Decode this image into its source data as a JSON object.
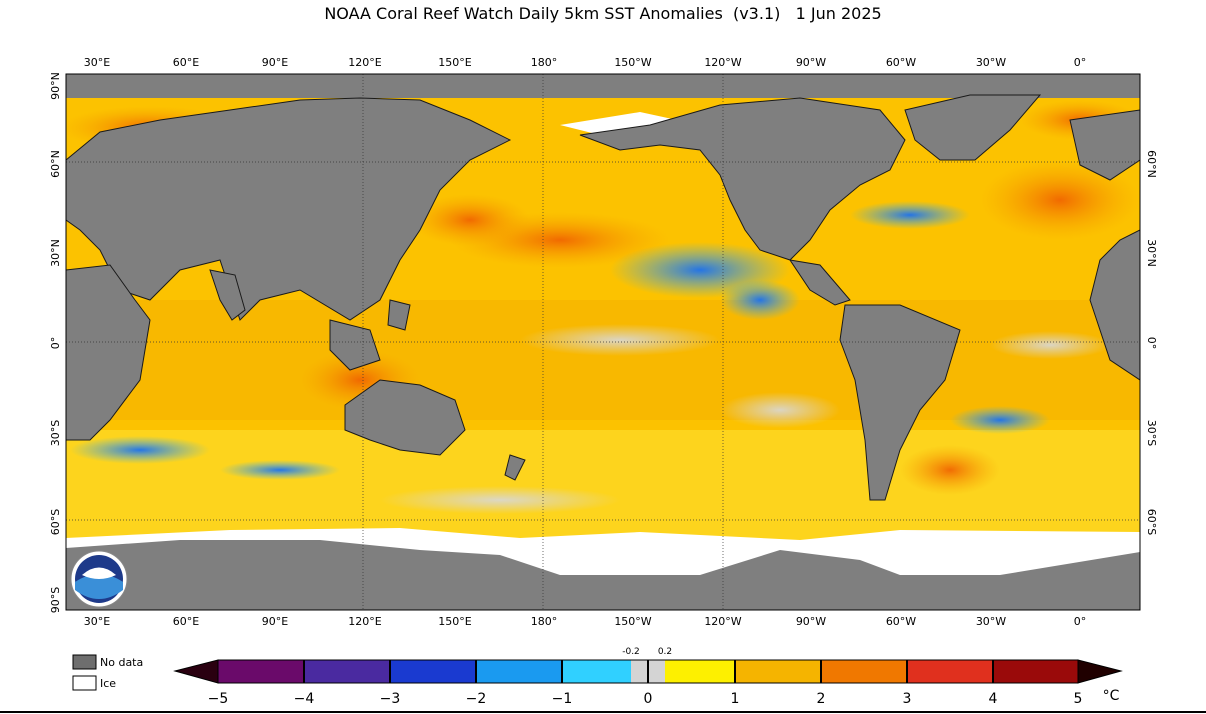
{
  "title": "NOAA Coral Reef Watch Daily 5km SST Anomalies  (v3.1)   1 Jun 2025",
  "lon_labels": [
    "30°E",
    "60°E",
    "90°E",
    "120°E",
    "150°E",
    "180°",
    "150°W",
    "120°W",
    "90°W",
    "60°W",
    "30°W",
    "0°"
  ],
  "lat_labels_left": [
    "90°N",
    "60°N",
    "30°N",
    "0°",
    "30°S",
    "60°S",
    "90°S"
  ],
  "lat_labels_right": [
    "60°N",
    "30°N",
    "0°",
    "30°S",
    "60°S"
  ],
  "legend": {
    "no_data": "No data",
    "ice": "Ice"
  },
  "colorbar": {
    "ticks": [
      "−5",
      "−4",
      "−3",
      "−2",
      "−1",
      "0",
      "1",
      "2",
      "3",
      "4",
      "5"
    ],
    "small_ticks": [
      "-0.2",
      "0.2"
    ],
    "unit": "°C",
    "colors": {
      "no_data": "#6e6e6e",
      "land": "#7f7f7f",
      "ice": "#ffffff",
      "neutral": "#d4d4d4",
      "warm": [
        "#fdf000",
        "#fcc200",
        "#f5a000",
        "#f07800",
        "#e0301e",
        "#b01010",
        "#6b0808"
      ],
      "cool": [
        "#00e0ff",
        "#2aa8ff",
        "#1860e0",
        "#2020b0",
        "#5a1a9a",
        "#7a0a7a"
      ]
    }
  }
}
